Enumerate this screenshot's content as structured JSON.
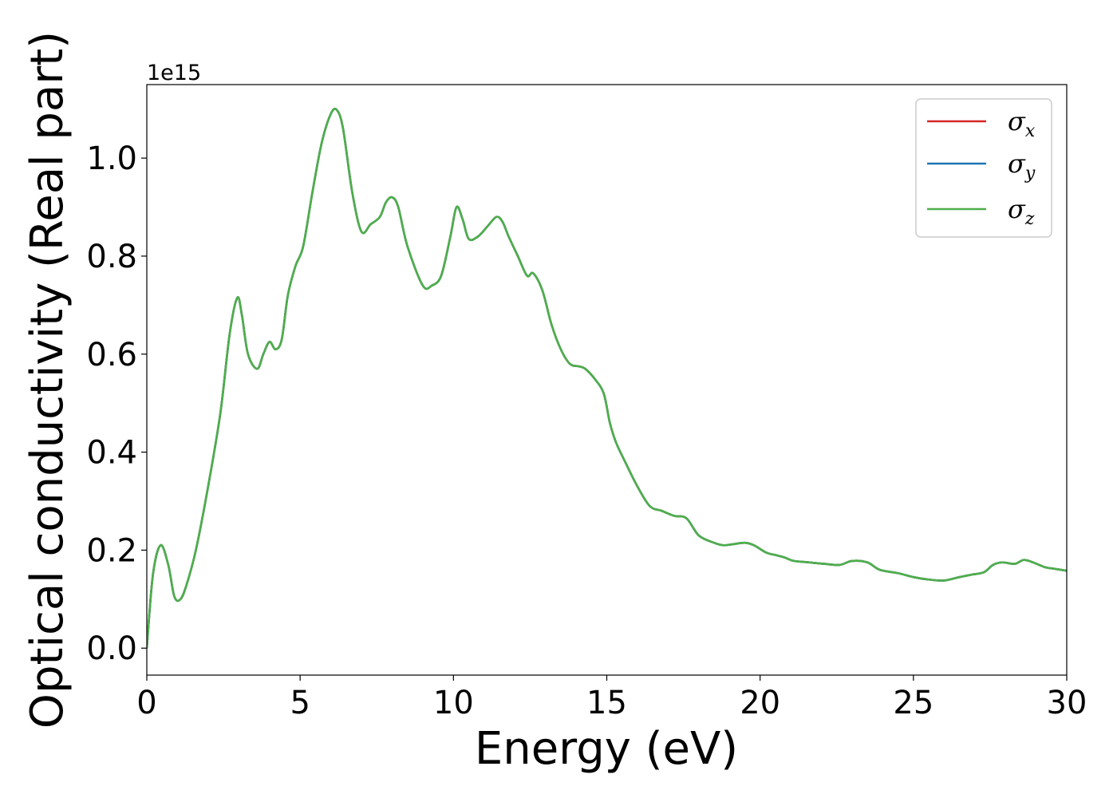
{
  "chart_data": {
    "type": "line",
    "title": "",
    "xlabel": "Energy (eV)",
    "ylabel": "Optical conductivity (Real part)",
    "y_offset_label": "1e15",
    "xlim": [
      0,
      30
    ],
    "ylim": [
      -0.055,
      1.15
    ],
    "xticks": [
      0,
      5,
      10,
      15,
      20,
      25,
      30
    ],
    "xtick_labels": [
      "0",
      "5",
      "10",
      "15",
      "20",
      "25",
      "30"
    ],
    "yticks": [
      0.0,
      0.2,
      0.4,
      0.6,
      0.8,
      1.0
    ],
    "ytick_labels": [
      "0.0",
      "0.2",
      "0.4",
      "0.6",
      "0.8",
      "1.0"
    ],
    "grid": false,
    "legend_position": "top-right",
    "series": [
      {
        "name": "σx",
        "label_base": "σ",
        "label_sub": "x",
        "color": "#d62728",
        "x": [
          0,
          0.2,
          0.45,
          0.7,
          0.9,
          1.1,
          1.3,
          1.6,
          2.0,
          2.4,
          2.7,
          2.95,
          3.1,
          3.3,
          3.6,
          3.8,
          4.0,
          4.2,
          4.4,
          4.6,
          4.85,
          5.1,
          5.4,
          5.7,
          6.0,
          6.2,
          6.4,
          6.7,
          7.0,
          7.3,
          7.6,
          7.8,
          8.0,
          8.2,
          8.5,
          9.0,
          9.3,
          9.6,
          9.9,
          10.1,
          10.3,
          10.5,
          10.8,
          11.1,
          11.4,
          11.6,
          11.8,
          12.1,
          12.4,
          12.6,
          12.9,
          13.2,
          13.5,
          13.8,
          14.1,
          14.3,
          14.6,
          14.9,
          15.1,
          15.3,
          15.6,
          16.0,
          16.4,
          16.8,
          17.2,
          17.6,
          18.0,
          18.5,
          18.8,
          19.1,
          19.5,
          19.8,
          20.2,
          20.5,
          20.8,
          21.1,
          21.6,
          22.1,
          22.6,
          23.0,
          23.5,
          23.9,
          24.5,
          25.0,
          25.5,
          26.0,
          26.5,
          26.9,
          27.3,
          27.6,
          27.9,
          28.3,
          28.6,
          28.9,
          29.3,
          29.6,
          30.0
        ],
        "y": [
          0.0,
          0.15,
          0.21,
          0.17,
          0.105,
          0.1,
          0.13,
          0.2,
          0.33,
          0.48,
          0.64,
          0.715,
          0.68,
          0.6,
          0.57,
          0.6,
          0.625,
          0.61,
          0.63,
          0.72,
          0.78,
          0.82,
          0.93,
          1.03,
          1.09,
          1.098,
          1.06,
          0.93,
          0.85,
          0.865,
          0.88,
          0.91,
          0.92,
          0.9,
          0.82,
          0.74,
          0.74,
          0.76,
          0.84,
          0.9,
          0.875,
          0.835,
          0.84,
          0.86,
          0.88,
          0.87,
          0.84,
          0.8,
          0.76,
          0.765,
          0.73,
          0.66,
          0.61,
          0.58,
          0.575,
          0.57,
          0.55,
          0.52,
          0.46,
          0.42,
          0.38,
          0.33,
          0.29,
          0.28,
          0.27,
          0.265,
          0.23,
          0.215,
          0.21,
          0.212,
          0.215,
          0.21,
          0.195,
          0.19,
          0.185,
          0.178,
          0.175,
          0.172,
          0.17,
          0.178,
          0.175,
          0.16,
          0.153,
          0.145,
          0.14,
          0.138,
          0.145,
          0.15,
          0.155,
          0.17,
          0.175,
          0.172,
          0.18,
          0.175,
          0.165,
          0.162,
          0.158
        ]
      },
      {
        "name": "σy",
        "label_base": "σ",
        "label_sub": "y",
        "color": "#1f77b4",
        "x": [
          0,
          0.2,
          0.45,
          0.7,
          0.9,
          1.1,
          1.3,
          1.6,
          2.0,
          2.4,
          2.7,
          2.95,
          3.1,
          3.3,
          3.6,
          3.8,
          4.0,
          4.2,
          4.4,
          4.6,
          4.85,
          5.1,
          5.4,
          5.7,
          6.0,
          6.2,
          6.4,
          6.7,
          7.0,
          7.3,
          7.6,
          7.8,
          8.0,
          8.2,
          8.5,
          9.0,
          9.3,
          9.6,
          9.9,
          10.1,
          10.3,
          10.5,
          10.8,
          11.1,
          11.4,
          11.6,
          11.8,
          12.1,
          12.4,
          12.6,
          12.9,
          13.2,
          13.5,
          13.8,
          14.1,
          14.3,
          14.6,
          14.9,
          15.1,
          15.3,
          15.6,
          16.0,
          16.4,
          16.8,
          17.2,
          17.6,
          18.0,
          18.5,
          18.8,
          19.1,
          19.5,
          19.8,
          20.2,
          20.5,
          20.8,
          21.1,
          21.6,
          22.1,
          22.6,
          23.0,
          23.5,
          23.9,
          24.5,
          25.0,
          25.5,
          26.0,
          26.5,
          26.9,
          27.3,
          27.6,
          27.9,
          28.3,
          28.6,
          28.9,
          29.3,
          29.6,
          30.0
        ],
        "y": [
          0.0,
          0.15,
          0.21,
          0.17,
          0.105,
          0.1,
          0.13,
          0.2,
          0.33,
          0.48,
          0.64,
          0.715,
          0.68,
          0.6,
          0.57,
          0.6,
          0.625,
          0.61,
          0.63,
          0.72,
          0.78,
          0.82,
          0.93,
          1.03,
          1.09,
          1.098,
          1.06,
          0.93,
          0.85,
          0.865,
          0.88,
          0.91,
          0.92,
          0.9,
          0.82,
          0.74,
          0.74,
          0.76,
          0.84,
          0.9,
          0.875,
          0.835,
          0.84,
          0.86,
          0.88,
          0.87,
          0.84,
          0.8,
          0.76,
          0.765,
          0.73,
          0.66,
          0.61,
          0.58,
          0.575,
          0.57,
          0.55,
          0.52,
          0.46,
          0.42,
          0.38,
          0.33,
          0.29,
          0.28,
          0.27,
          0.265,
          0.23,
          0.215,
          0.21,
          0.212,
          0.215,
          0.21,
          0.195,
          0.19,
          0.185,
          0.178,
          0.175,
          0.172,
          0.17,
          0.178,
          0.175,
          0.16,
          0.153,
          0.145,
          0.14,
          0.138,
          0.145,
          0.15,
          0.155,
          0.17,
          0.175,
          0.172,
          0.18,
          0.175,
          0.165,
          0.162,
          0.158
        ]
      },
      {
        "name": "σz",
        "label_base": "σ",
        "label_sub": "z",
        "color": "#4daf4a",
        "x": [
          0,
          0.2,
          0.45,
          0.7,
          0.9,
          1.1,
          1.3,
          1.6,
          2.0,
          2.4,
          2.7,
          2.95,
          3.1,
          3.3,
          3.6,
          3.8,
          4.0,
          4.2,
          4.4,
          4.6,
          4.85,
          5.1,
          5.4,
          5.7,
          6.0,
          6.2,
          6.4,
          6.7,
          7.0,
          7.3,
          7.6,
          7.8,
          8.0,
          8.2,
          8.5,
          9.0,
          9.3,
          9.6,
          9.9,
          10.1,
          10.3,
          10.5,
          10.8,
          11.1,
          11.4,
          11.6,
          11.8,
          12.1,
          12.4,
          12.6,
          12.9,
          13.2,
          13.5,
          13.8,
          14.1,
          14.3,
          14.6,
          14.9,
          15.1,
          15.3,
          15.6,
          16.0,
          16.4,
          16.8,
          17.2,
          17.6,
          18.0,
          18.5,
          18.8,
          19.1,
          19.5,
          19.8,
          20.2,
          20.5,
          20.8,
          21.1,
          21.6,
          22.1,
          22.6,
          23.0,
          23.5,
          23.9,
          24.5,
          25.0,
          25.5,
          26.0,
          26.5,
          26.9,
          27.3,
          27.6,
          27.9,
          28.3,
          28.6,
          28.9,
          29.3,
          29.6,
          30.0
        ],
        "y": [
          0.0,
          0.15,
          0.21,
          0.17,
          0.105,
          0.1,
          0.13,
          0.2,
          0.33,
          0.48,
          0.64,
          0.715,
          0.68,
          0.6,
          0.57,
          0.6,
          0.625,
          0.61,
          0.63,
          0.72,
          0.78,
          0.82,
          0.93,
          1.03,
          1.09,
          1.098,
          1.06,
          0.93,
          0.85,
          0.865,
          0.88,
          0.91,
          0.92,
          0.9,
          0.82,
          0.74,
          0.74,
          0.76,
          0.84,
          0.9,
          0.875,
          0.835,
          0.84,
          0.86,
          0.88,
          0.87,
          0.84,
          0.8,
          0.76,
          0.765,
          0.73,
          0.66,
          0.61,
          0.58,
          0.575,
          0.57,
          0.55,
          0.52,
          0.46,
          0.42,
          0.38,
          0.33,
          0.29,
          0.28,
          0.27,
          0.265,
          0.23,
          0.215,
          0.21,
          0.212,
          0.215,
          0.21,
          0.195,
          0.19,
          0.185,
          0.178,
          0.175,
          0.172,
          0.17,
          0.178,
          0.175,
          0.16,
          0.153,
          0.145,
          0.14,
          0.138,
          0.145,
          0.15,
          0.155,
          0.17,
          0.175,
          0.172,
          0.18,
          0.175,
          0.165,
          0.162,
          0.158
        ]
      }
    ]
  }
}
